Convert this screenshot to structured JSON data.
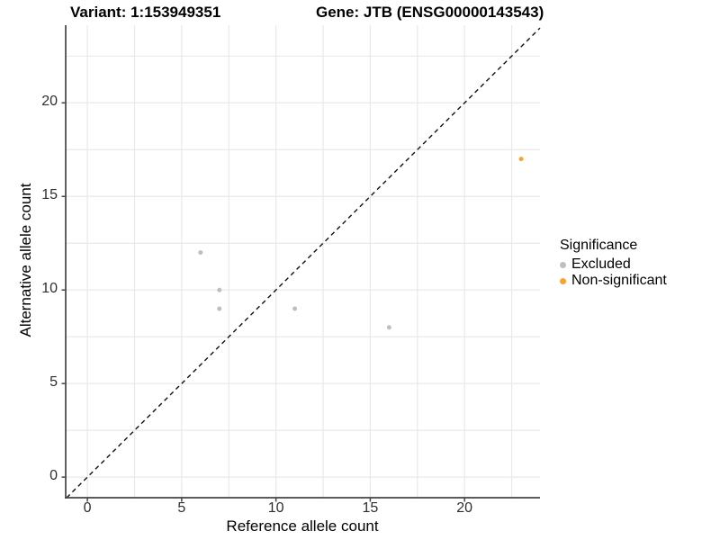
{
  "header": {
    "variant_title": "Variant: 1:153949351",
    "gene_title": "Gene: JTB (ENSG00000143543)"
  },
  "chart_data": {
    "type": "scatter",
    "title": "Variant: 1:153949351   Gene: JTB (ENSG00000143543)",
    "xlabel": "Reference allele count",
    "ylabel": "Alternative allele count",
    "xlim": [
      -1.15,
      24.0
    ],
    "ylim": [
      -1.1,
      24.15
    ],
    "xticks": [
      0,
      5,
      10,
      15,
      20
    ],
    "yticks": [
      0,
      5,
      10,
      15,
      20
    ],
    "grid": true,
    "grid_interval": 2.5,
    "grid_max": 22.5,
    "grid_color": "#e9e9e9",
    "axis_line_color": "#454545",
    "tick_text_color": "#2e2e2e",
    "identity_line": {
      "slope": 1,
      "intercept": 0,
      "style": "dashed",
      "color": "#111111"
    },
    "point_radius": 2.5,
    "series": [
      {
        "name": "Excluded",
        "color": "#bebebe",
        "points": [
          [
            6,
            12
          ],
          [
            7,
            10
          ],
          [
            7,
            9
          ],
          [
            11,
            9
          ],
          [
            16,
            8
          ]
        ]
      },
      {
        "name": "Non-significant",
        "color": "#f9a132",
        "points": [
          [
            23,
            17
          ]
        ]
      }
    ],
    "legend": {
      "title": "Significance",
      "position": "right",
      "items": [
        {
          "label": "Excluded",
          "color": "#bebebe"
        },
        {
          "label": "Non-significant",
          "color": "#f9a132"
        }
      ]
    }
  }
}
